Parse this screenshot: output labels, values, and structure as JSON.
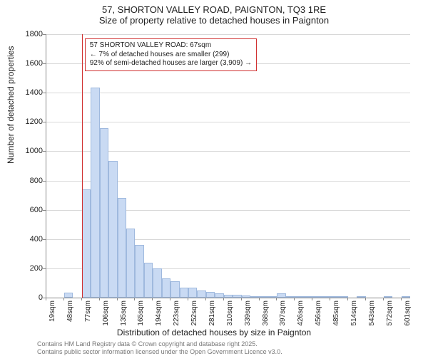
{
  "title": {
    "line1": "57, SHORTON VALLEY ROAD, PAIGNTON, TQ3 1RE",
    "line2": "Size of property relative to detached houses in Paignton"
  },
  "chart": {
    "type": "histogram",
    "background_color": "#ffffff",
    "grid_color": "#d8d8d8",
    "axis_color": "#888888",
    "bar_fill": "#c9daf3",
    "bar_border": "#9fb9de",
    "marker_color": "#d03030",
    "ylabel": "Number of detached properties",
    "xlabel": "Distribution of detached houses by size in Paignton",
    "ylim": [
      0,
      1800
    ],
    "ytick_step": 200,
    "yticks": [
      0,
      200,
      400,
      600,
      800,
      1000,
      1200,
      1400,
      1600,
      1800
    ],
    "xticks": [
      "19sqm",
      "48sqm",
      "77sqm",
      "106sqm",
      "135sqm",
      "165sqm",
      "194sqm",
      "223sqm",
      "252sqm",
      "281sqm",
      "310sqm",
      "339sqm",
      "368sqm",
      "397sqm",
      "426sqm",
      "456sqm",
      "485sqm",
      "514sqm",
      "543sqm",
      "572sqm",
      "601sqm"
    ],
    "xtick_every": 2,
    "n_bins": 41,
    "values": [
      0,
      0,
      35,
      0,
      740,
      1435,
      1160,
      935,
      680,
      470,
      360,
      240,
      200,
      130,
      110,
      70,
      70,
      50,
      40,
      30,
      18,
      18,
      15,
      12,
      12,
      10,
      30,
      10,
      8,
      8,
      6,
      5,
      4,
      4,
      0,
      3,
      0,
      0,
      3,
      0,
      3
    ],
    "marker_bin_index": 3,
    "annotation": {
      "line1": "57 SHORTON VALLEY ROAD: 67sqm",
      "line2": "← 7% of detached houses are smaller (299)",
      "line3": "92% of semi-detached houses are larger (3,909) →",
      "box_color": "#d03030",
      "fontsize": 10
    },
    "label_fontsize": 12,
    "tick_fontsize": 11,
    "title_fontsize": 13
  },
  "footer": {
    "line1": "Contains HM Land Registry data © Crown copyright and database right 2025.",
    "line2": "Contains public sector information licensed under the Open Government Licence v3.0."
  }
}
